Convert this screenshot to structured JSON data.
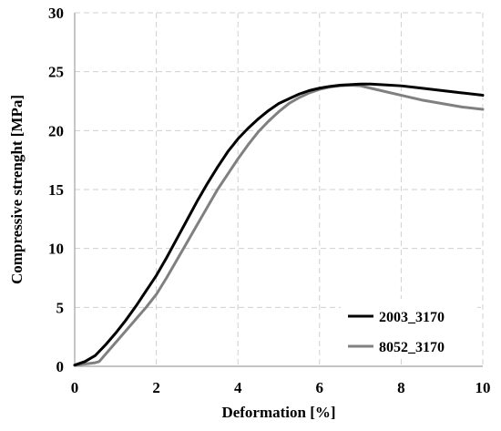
{
  "chart_data": {
    "type": "line",
    "title": "",
    "xlabel": "Deformation [%]",
    "ylabel": "Compressive strenght [MPa]",
    "xlim": [
      0,
      10
    ],
    "ylim": [
      0,
      30
    ],
    "x_ticks": [
      "0",
      "2",
      "4",
      "6",
      "8",
      "10"
    ],
    "y_ticks": [
      "0",
      "5",
      "10",
      "15",
      "20",
      "25",
      "30"
    ],
    "grid": true,
    "legend_position": "bottom-right",
    "series": [
      {
        "name": "2003_3170",
        "color": "#000000",
        "x": [
          0,
          0.25,
          0.5,
          0.75,
          1.0,
          1.25,
          1.5,
          1.75,
          2.0,
          2.25,
          2.5,
          2.75,
          3.0,
          3.25,
          3.5,
          3.75,
          4.0,
          4.25,
          4.5,
          4.75,
          5.0,
          5.25,
          5.5,
          5.75,
          6.0,
          6.25,
          6.5,
          6.75,
          7.0,
          7.25,
          7.5,
          8.0,
          8.5,
          9.0,
          9.5,
          10.0
        ],
        "y": [
          0.1,
          0.4,
          0.9,
          1.8,
          2.8,
          3.9,
          5.1,
          6.4,
          7.7,
          9.2,
          10.8,
          12.4,
          14.0,
          15.5,
          16.9,
          18.2,
          19.3,
          20.2,
          21.0,
          21.7,
          22.3,
          22.7,
          23.1,
          23.4,
          23.6,
          23.75,
          23.85,
          23.9,
          23.95,
          23.95,
          23.9,
          23.8,
          23.6,
          23.4,
          23.2,
          23.0
        ]
      },
      {
        "name": "8052_3170",
        "color": "#808080",
        "x": [
          0,
          0.5,
          0.6,
          0.75,
          1.0,
          1.25,
          1.5,
          1.75,
          2.0,
          2.25,
          2.5,
          2.75,
          3.0,
          3.25,
          3.5,
          3.75,
          4.0,
          4.25,
          4.5,
          4.75,
          5.0,
          5.25,
          5.5,
          5.75,
          6.0,
          6.25,
          6.5,
          6.75,
          7.0,
          7.25,
          7.5,
          8.0,
          8.5,
          9.0,
          9.5,
          10.0
        ],
        "y": [
          0.1,
          0.3,
          0.4,
          1.0,
          2.0,
          3.0,
          4.0,
          5.0,
          6.1,
          7.5,
          9.0,
          10.5,
          12.0,
          13.5,
          15.0,
          16.3,
          17.6,
          18.8,
          19.9,
          20.8,
          21.6,
          22.3,
          22.8,
          23.2,
          23.5,
          23.7,
          23.8,
          23.85,
          23.8,
          23.6,
          23.4,
          23.0,
          22.6,
          22.3,
          22.0,
          21.8
        ]
      }
    ]
  }
}
